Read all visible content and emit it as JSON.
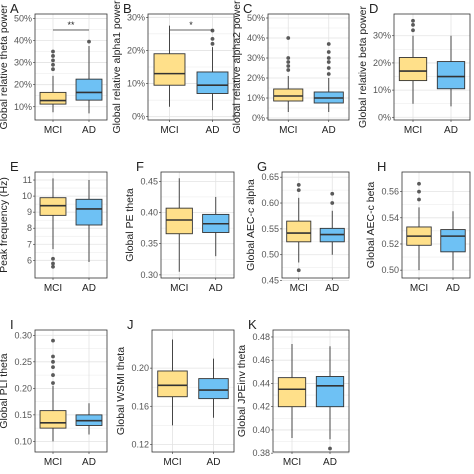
{
  "colors": {
    "mci": "#FFE08A",
    "ad": "#6EC1F4",
    "grid": "#E3E3E3",
    "frame": "#333333",
    "text": "#222222",
    "tick": "#555555"
  },
  "chart_data": [
    {
      "type": "box",
      "panel_letter": "A",
      "ylabel": "Global relative theta power",
      "y_ticks": [
        "10%",
        "20%",
        "30%",
        "40%",
        "50%"
      ],
      "y_tick_values": [
        0.1,
        0.2,
        0.3,
        0.4,
        0.5
      ],
      "ylim": [
        0.04,
        0.52
      ],
      "categories": [
        "MCI",
        "AD"
      ],
      "significance": "**",
      "boxes": [
        {
          "group": "MCI",
          "whisker_low": 0.075,
          "q1": 0.112,
          "median": 0.128,
          "q3": 0.165,
          "whisker_high": 0.24,
          "outliers": [
            0.27,
            0.29,
            0.31,
            0.33,
            0.35
          ]
        },
        {
          "group": "AD",
          "whisker_low": 0.07,
          "q1": 0.13,
          "median": 0.165,
          "q3": 0.225,
          "whisker_high": 0.375,
          "outliers": [
            0.395
          ]
        }
      ]
    },
    {
      "type": "box",
      "panel_letter": "B",
      "ylabel": "Global relative alpha1 power",
      "y_ticks": [
        "0%",
        "10%",
        "20%",
        "30%"
      ],
      "y_tick_values": [
        0.0,
        0.1,
        0.2,
        0.3
      ],
      "ylim": [
        -0.01,
        0.31
      ],
      "categories": [
        "MCI",
        "AD"
      ],
      "significance": "*",
      "boxes": [
        {
          "group": "MCI",
          "whisker_low": 0.03,
          "q1": 0.095,
          "median": 0.13,
          "q3": 0.19,
          "whisker_high": 0.275,
          "outliers": []
        },
        {
          "group": "AD",
          "whisker_low": 0.02,
          "q1": 0.07,
          "median": 0.095,
          "q3": 0.135,
          "whisker_high": 0.21,
          "outliers": [
            0.22,
            0.235,
            0.26
          ]
        }
      ]
    },
    {
      "type": "box",
      "panel_letter": "C",
      "ylabel": "Global relative alpha2 power",
      "y_ticks": [
        "0%",
        "10%",
        "20%",
        "30%",
        "40%",
        "50%"
      ],
      "y_tick_values": [
        0.0,
        0.1,
        0.2,
        0.3,
        0.4,
        0.5
      ],
      "ylim": [
        -0.01,
        0.52
      ],
      "categories": [
        "MCI",
        "AD"
      ],
      "boxes": [
        {
          "group": "MCI",
          "whisker_low": 0.03,
          "q1": 0.085,
          "median": 0.11,
          "q3": 0.145,
          "whisker_high": 0.21,
          "outliers": [
            0.24,
            0.26,
            0.28,
            0.3,
            0.4
          ]
        },
        {
          "group": "AD",
          "whisker_low": 0.03,
          "q1": 0.075,
          "median": 0.1,
          "q3": 0.13,
          "whisker_high": 0.2,
          "outliers": [
            0.22,
            0.25,
            0.28,
            0.3,
            0.33,
            0.37
          ]
        }
      ]
    },
    {
      "type": "box",
      "panel_letter": "D",
      "ylabel": "Global relative beta power",
      "y_ticks": [
        "0%",
        "10%",
        "20%",
        "30%"
      ],
      "y_tick_values": [
        0.0,
        0.1,
        0.2,
        0.3
      ],
      "ylim": [
        -0.01,
        0.38
      ],
      "categories": [
        "MCI",
        "AD"
      ],
      "boxes": [
        {
          "group": "MCI",
          "whisker_low": 0.05,
          "q1": 0.135,
          "median": 0.17,
          "q3": 0.22,
          "whisker_high": 0.3,
          "outliers": [
            0.32,
            0.34,
            0.355
          ]
        },
        {
          "group": "AD",
          "whisker_low": 0.04,
          "q1": 0.105,
          "median": 0.15,
          "q3": 0.205,
          "whisker_high": 0.3,
          "outliers": []
        }
      ]
    },
    {
      "type": "box",
      "panel_letter": "E",
      "ylabel": "Peak frequency (Hz)",
      "y_ticks": [
        "6",
        "7",
        "8",
        "9",
        "10",
        "11"
      ],
      "y_tick_values": [
        6,
        7,
        8,
        9,
        10,
        11
      ],
      "ylim": [
        4.9,
        11.5
      ],
      "categories": [
        "MCI",
        "AD"
      ],
      "boxes": [
        {
          "group": "MCI",
          "whisker_low": 6.7,
          "q1": 8.8,
          "median": 9.4,
          "q3": 9.9,
          "whisker_high": 11.1,
          "outliers": [
            5.6,
            5.8,
            6.1
          ]
        },
        {
          "group": "AD",
          "whisker_low": 5.9,
          "q1": 8.2,
          "median": 9.2,
          "q3": 9.8,
          "whisker_high": 11.0,
          "outliers": []
        }
      ]
    },
    {
      "type": "box",
      "panel_letter": "F",
      "ylabel": "Global PE theta",
      "y_ticks": [
        "0.30",
        "0.35",
        "0.40",
        "0.45"
      ],
      "y_tick_values": [
        0.3,
        0.35,
        0.4,
        0.45
      ],
      "ylim": [
        0.295,
        0.465
      ],
      "categories": [
        "MCI",
        "AD"
      ],
      "boxes": [
        {
          "group": "MCI",
          "whisker_low": 0.305,
          "q1": 0.366,
          "median": 0.388,
          "q3": 0.407,
          "whisker_high": 0.455,
          "outliers": []
        },
        {
          "group": "AD",
          "whisker_low": 0.33,
          "q1": 0.368,
          "median": 0.382,
          "q3": 0.397,
          "whisker_high": 0.425,
          "outliers": []
        }
      ]
    },
    {
      "type": "box",
      "panel_letter": "G",
      "ylabel": "Global AEC-c alpha",
      "y_ticks": [
        "0.45",
        "0.50",
        "0.55",
        "0.60",
        "0.65"
      ],
      "y_tick_values": [
        0.45,
        0.5,
        0.55,
        0.6,
        0.65
      ],
      "ylim": [
        0.455,
        0.66
      ],
      "categories": [
        "MCI",
        "AD"
      ],
      "boxes": [
        {
          "group": "MCI",
          "whisker_low": 0.485,
          "q1": 0.525,
          "median": 0.542,
          "q3": 0.565,
          "whisker_high": 0.61,
          "outliers": [
            0.47,
            0.625,
            0.635
          ]
        },
        {
          "group": "AD",
          "whisker_low": 0.5,
          "q1": 0.525,
          "median": 0.539,
          "q3": 0.551,
          "whisker_high": 0.585,
          "outliers": [
            0.6,
            0.618
          ]
        }
      ]
    },
    {
      "type": "box",
      "panel_letter": "H",
      "ylabel": "Global AEC-c beta",
      "y_ticks": [
        "0.50",
        "0.52",
        "0.54",
        "0.56"
      ],
      "y_tick_values": [
        0.5,
        0.52,
        0.54,
        0.56
      ],
      "ylim": [
        0.494,
        0.575
      ],
      "categories": [
        "MCI",
        "AD"
      ],
      "boxes": [
        {
          "group": "MCI",
          "whisker_low": 0.5,
          "q1": 0.519,
          "median": 0.526,
          "q3": 0.533,
          "whisker_high": 0.548,
          "outliers": [
            0.554,
            0.56,
            0.566
          ]
        },
        {
          "group": "AD",
          "whisker_low": 0.5,
          "q1": 0.514,
          "median": 0.526,
          "q3": 0.531,
          "whisker_high": 0.545,
          "outliers": []
        }
      ]
    },
    {
      "type": "box",
      "panel_letter": "I",
      "ylabel": "Global PLI theta",
      "y_ticks": [
        "0.10",
        "0.15",
        "0.20",
        "0.25",
        "0.30"
      ],
      "y_tick_values": [
        0.1,
        0.15,
        0.2,
        0.25,
        0.3
      ],
      "ylim": [
        0.08,
        0.31
      ],
      "categories": [
        "MCI",
        "AD"
      ],
      "boxes": [
        {
          "group": "MCI",
          "whisker_low": 0.1,
          "q1": 0.125,
          "median": 0.135,
          "q3": 0.158,
          "whisker_high": 0.205,
          "outliers": [
            0.21,
            0.225,
            0.24,
            0.25,
            0.26,
            0.29
          ]
        },
        {
          "group": "AD",
          "whisker_low": 0.113,
          "q1": 0.13,
          "median": 0.139,
          "q3": 0.15,
          "whisker_high": 0.172,
          "outliers": []
        }
      ]
    },
    {
      "type": "box",
      "panel_letter": "J",
      "ylabel": "Global WSMI theta",
      "y_ticks": [
        "0.12",
        "0.16",
        "0.20"
      ],
      "y_tick_values": [
        0.12,
        0.16,
        0.2
      ],
      "ylim": [
        0.112,
        0.24
      ],
      "categories": [
        "MCI",
        "AD"
      ],
      "boxes": [
        {
          "group": "MCI",
          "whisker_low": 0.14,
          "q1": 0.17,
          "median": 0.182,
          "q3": 0.197,
          "whisker_high": 0.23,
          "outliers": []
        },
        {
          "group": "AD",
          "whisker_low": 0.148,
          "q1": 0.168,
          "median": 0.177,
          "q3": 0.189,
          "whisker_high": 0.21,
          "outliers": []
        }
      ]
    },
    {
      "type": "box",
      "panel_letter": "K",
      "ylabel": "Global JPEinv theta",
      "y_ticks": [
        "0.38",
        "0.40",
        "0.42",
        "0.44",
        "0.46",
        "0.48"
      ],
      "y_tick_values": [
        0.38,
        0.4,
        0.42,
        0.44,
        0.46,
        0.48
      ],
      "ylim": [
        0.381,
        0.486
      ],
      "categories": [
        "MCI",
        "AD"
      ],
      "boxes": [
        {
          "group": "MCI",
          "whisker_low": 0.393,
          "q1": 0.42,
          "median": 0.435,
          "q3": 0.445,
          "whisker_high": 0.474,
          "outliers": []
        },
        {
          "group": "AD",
          "whisker_low": 0.392,
          "q1": 0.42,
          "median": 0.438,
          "q3": 0.446,
          "whisker_high": 0.472,
          "outliers": [
            0.384
          ]
        }
      ]
    }
  ]
}
